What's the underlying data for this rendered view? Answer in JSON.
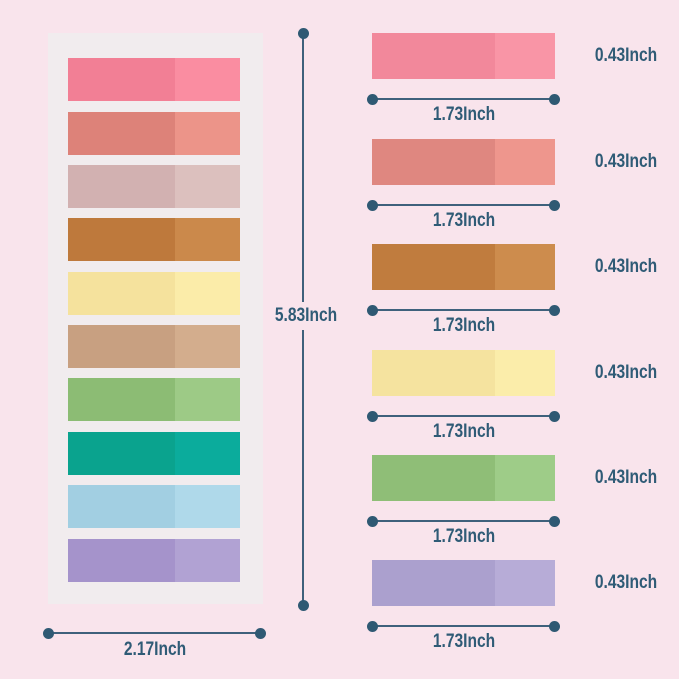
{
  "page": {
    "background_color": "#F9E4EC",
    "card_background_color": "#F1ECEE",
    "label_text_color": "#2F5B76",
    "dimension_line_color": "#3F617C"
  },
  "left_card": {
    "height_label": "5.83Inch",
    "width_label": "2.17Inch",
    "strips": [
      {
        "name": "pink",
        "left_color": "#F27F95",
        "right_color": "#FA8DA1"
      },
      {
        "name": "salmon",
        "left_color": "#DD8279",
        "right_color": "#EC9489"
      },
      {
        "name": "dusty-rose",
        "left_color": "#D2B1B1",
        "right_color": "#DCC0BE"
      },
      {
        "name": "orange-brown",
        "left_color": "#BE793C",
        "right_color": "#CB894B"
      },
      {
        "name": "pale-yellow",
        "left_color": "#F5E29D",
        "right_color": "#FBECA9"
      },
      {
        "name": "tan",
        "left_color": "#C8A081",
        "right_color": "#D3AD8D"
      },
      {
        "name": "green",
        "left_color": "#8CBC74",
        "right_color": "#9DCA86"
      },
      {
        "name": "teal",
        "left_color": "#0AA38E",
        "right_color": "#0BAC9C"
      },
      {
        "name": "light-blue",
        "left_color": "#A2CFE2",
        "right_color": "#AFD9EA"
      },
      {
        "name": "lavender",
        "left_color": "#A593CB",
        "right_color": "#B1A2D3"
      }
    ]
  },
  "right_column": {
    "strips": [
      {
        "name": "pink",
        "left_color": "#F2889B",
        "right_color": "#F995A6",
        "width_label": "1.73Inch",
        "height_label": "0.43Inch"
      },
      {
        "name": "salmon",
        "left_color": "#DF8780",
        "right_color": "#EE968D",
        "width_label": "1.73Inch",
        "height_label": "0.43Inch"
      },
      {
        "name": "orange-brown",
        "left_color": "#C07C3E",
        "right_color": "#CD8C4D",
        "width_label": "1.73Inch",
        "height_label": "0.43Inch"
      },
      {
        "name": "pale-yellow",
        "left_color": "#F5E39F",
        "right_color": "#FBEDAA",
        "width_label": "1.73Inch",
        "height_label": "0.43Inch"
      },
      {
        "name": "green",
        "left_color": "#8FBE77",
        "right_color": "#9ECC88",
        "width_label": "1.73Inch",
        "height_label": "0.43Inch"
      },
      {
        "name": "lavender",
        "left_color": "#ABA0CE",
        "right_color": "#B7ACD7",
        "width_label": "1.73Inch",
        "height_label": "0.43Inch"
      }
    ]
  }
}
